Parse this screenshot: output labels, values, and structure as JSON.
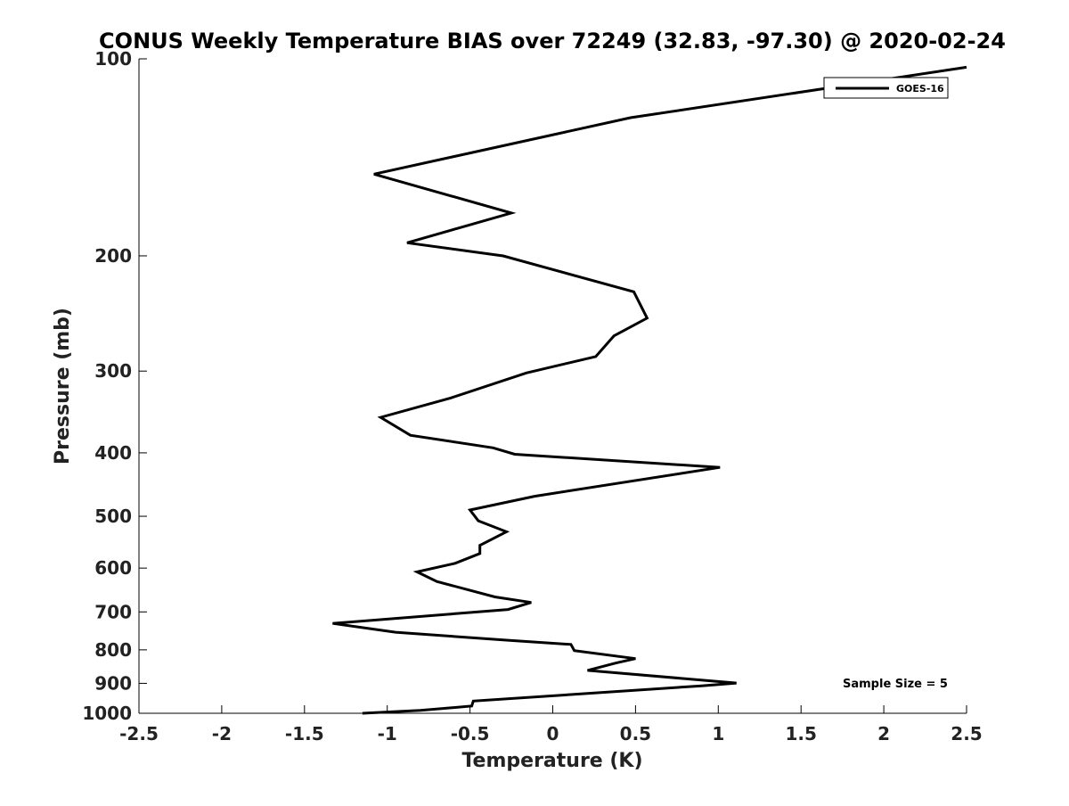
{
  "chart_data": {
    "type": "line",
    "title": "CONUS Weekly Temperature BIAS over 72249 (32.83, -97.30) @ 2020-02-24",
    "xlabel": "Temperature (K)",
    "ylabel": "Pressure (mb)",
    "xlim": [
      -2.5,
      2.5
    ],
    "ylim": [
      1000,
      100
    ],
    "yscale": "log",
    "y_reversed": true,
    "xticks": [
      "-2.5",
      "-2",
      "-1.5",
      "-1",
      "-0.5",
      "0",
      "0.5",
      "1",
      "1.5",
      "2",
      "2.5"
    ],
    "yticks": [
      "100",
      "200",
      "300",
      "400",
      "500",
      "600",
      "700",
      "800",
      "900",
      "1000"
    ],
    "grid": false,
    "legend_position": "top-right",
    "annotation": "Sample Size = 5",
    "series": [
      {
        "name": "GOES-16",
        "color": "#000000",
        "points": [
          [
            2.5,
            103
          ],
          [
            0.47,
            123
          ],
          [
            -1.08,
            150
          ],
          [
            -0.25,
            172
          ],
          [
            -0.88,
            191
          ],
          [
            -0.3,
            200
          ],
          [
            0.49,
            227
          ],
          [
            0.57,
            249
          ],
          [
            0.37,
            265
          ],
          [
            0.26,
            285
          ],
          [
            -0.16,
            302
          ],
          [
            -0.62,
            330
          ],
          [
            -1.04,
            353
          ],
          [
            -0.86,
            376
          ],
          [
            -0.36,
            393
          ],
          [
            -0.23,
            402
          ],
          [
            1.01,
            421
          ],
          [
            -0.11,
            466
          ],
          [
            -0.5,
            489
          ],
          [
            -0.45,
            508
          ],
          [
            -0.28,
            528
          ],
          [
            -0.44,
            554
          ],
          [
            -0.44,
            570
          ],
          [
            -0.59,
            590
          ],
          [
            -0.82,
            608
          ],
          [
            -0.7,
            629
          ],
          [
            -0.35,
            664
          ],
          [
            -0.13,
            677
          ],
          [
            -0.27,
            694
          ],
          [
            -1.33,
            729
          ],
          [
            -0.95,
            752
          ],
          [
            -0.26,
            774
          ],
          [
            0.11,
            785
          ],
          [
            0.13,
            802
          ],
          [
            0.5,
            825
          ],
          [
            0.38,
            838
          ],
          [
            0.21,
            860
          ],
          [
            1.11,
            899
          ],
          [
            0.9,
            908
          ],
          [
            -0.48,
            958
          ],
          [
            -0.49,
            975
          ],
          [
            -0.8,
            990
          ],
          [
            -1.15,
            1000
          ]
        ]
      }
    ]
  }
}
